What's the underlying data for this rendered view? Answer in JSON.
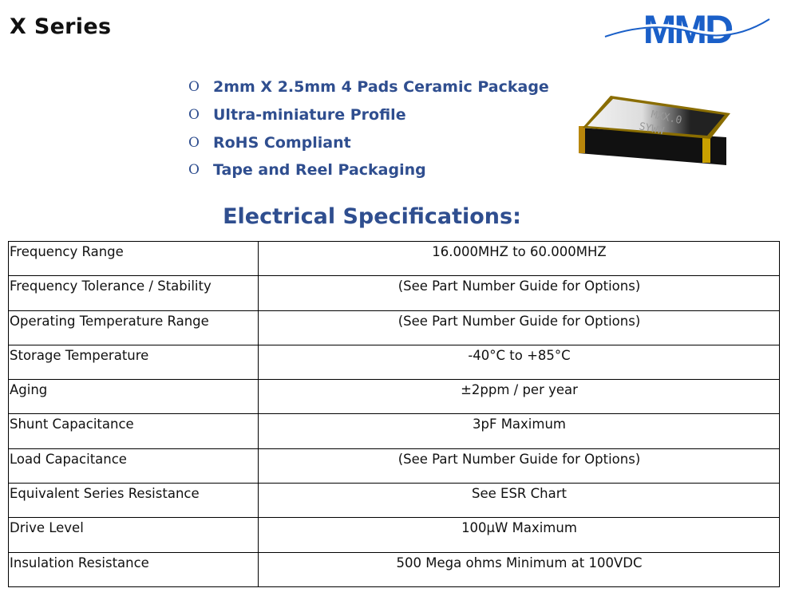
{
  "header": {
    "title": "X Series",
    "logo_text": "MMD",
    "logo_color": "#1a5fc8"
  },
  "features": [
    "2mm X 2.5mm 4 Pads Ceramic Package",
    "Ultra-miniature Profile",
    "RoHS Compliant",
    "Tape and Reel Packaging"
  ],
  "product_image": {
    "marking_line1": "MXX.0",
    "marking_line2": "SYWW"
  },
  "specs": {
    "heading": "Electrical Specifications:",
    "rows": [
      {
        "param": "Frequency Range",
        "value": "16.000MHZ to 60.000MHZ"
      },
      {
        "param": "Frequency Tolerance / Stability",
        "value": "(See Part Number Guide for Options)"
      },
      {
        "param": "Operating Temperature Range",
        "value": "(See Part Number Guide for Options)"
      },
      {
        "param": "Storage Temperature",
        "value": "-40°C to +85°C"
      },
      {
        "param": "Aging",
        "value": "±2ppm / per year"
      },
      {
        "param": "Shunt Capacitance",
        "value": "3pF Maximum"
      },
      {
        "param": "Load Capacitance",
        "value": "(See Part Number Guide for Options)"
      },
      {
        "param": "Equivalent Series Resistance",
        "value": "See ESR Chart"
      },
      {
        "param": "Drive Level",
        "value": "100µW Maximum"
      },
      {
        "param": "Insulation Resistance",
        "value": "500 Mega ohms Minimum at 100VDC"
      }
    ]
  }
}
